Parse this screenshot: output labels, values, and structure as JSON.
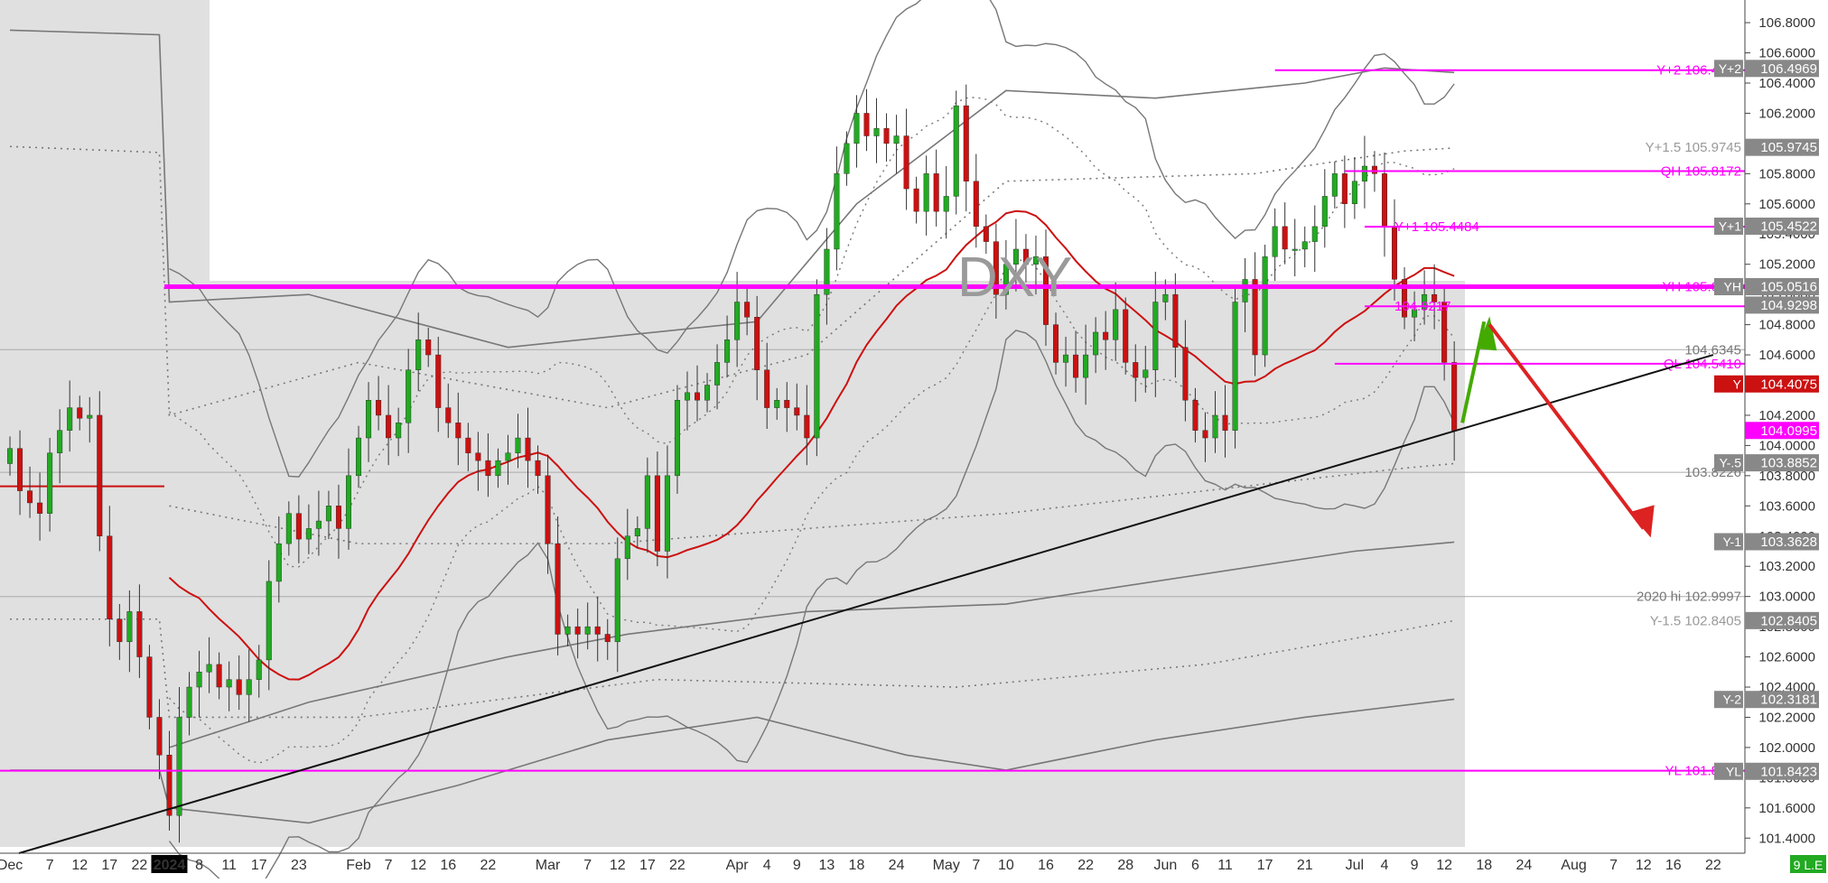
{
  "chart_data": {
    "type": "candlestick",
    "title": "DXY",
    "ylim": [
      101.3,
      106.95
    ],
    "y_ticks": [
      "106.8000",
      "106.6000",
      "106.4000",
      "106.2000",
      "106.0000",
      "105.8000",
      "105.6000",
      "105.4000",
      "105.2000",
      "105.0000",
      "104.8000",
      "104.6000",
      "104.4000",
      "104.2000",
      "104.0000",
      "103.8000",
      "103.6000",
      "103.4000",
      "103.2000",
      "103.0000",
      "102.8000",
      "102.6000",
      "102.4000",
      "102.2000",
      "102.0000",
      "101.8000",
      "101.6000",
      "101.4000"
    ],
    "x_ticks": [
      {
        "label": "Dec",
        "i": 0
      },
      {
        "label": "7",
        "i": 4
      },
      {
        "label": "12",
        "i": 7
      },
      {
        "label": "17",
        "i": 10
      },
      {
        "label": "22",
        "i": 13
      },
      {
        "label": "2024",
        "i": 16,
        "bold": true
      },
      {
        "label": "8",
        "i": 19
      },
      {
        "label": "11",
        "i": 22
      },
      {
        "label": "17",
        "i": 25
      },
      {
        "label": "23",
        "i": 29
      },
      {
        "label": "Feb",
        "i": 35
      },
      {
        "label": "7",
        "i": 38
      },
      {
        "label": "12",
        "i": 41
      },
      {
        "label": "16",
        "i": 44
      },
      {
        "label": "22",
        "i": 48
      },
      {
        "label": "Mar",
        "i": 54
      },
      {
        "label": "7",
        "i": 58
      },
      {
        "label": "12",
        "i": 61
      },
      {
        "label": "17",
        "i": 64
      },
      {
        "label": "22",
        "i": 67
      },
      {
        "label": "Apr",
        "i": 73
      },
      {
        "label": "4",
        "i": 76
      },
      {
        "label": "9",
        "i": 79
      },
      {
        "label": "13",
        "i": 82
      },
      {
        "label": "18",
        "i": 85
      },
      {
        "label": "24",
        "i": 89
      },
      {
        "label": "May",
        "i": 94
      },
      {
        "label": "7",
        "i": 97
      },
      {
        "label": "10",
        "i": 100
      },
      {
        "label": "16",
        "i": 104
      },
      {
        "label": "22",
        "i": 108
      },
      {
        "label": "28",
        "i": 112
      },
      {
        "label": "Jun",
        "i": 116
      },
      {
        "label": "6",
        "i": 119
      },
      {
        "label": "11",
        "i": 122
      },
      {
        "label": "17",
        "i": 126
      },
      {
        "label": "21",
        "i": 130
      },
      {
        "label": "Jul",
        "i": 135
      },
      {
        "label": "4",
        "i": 138
      },
      {
        "label": "9",
        "i": 141
      },
      {
        "label": "12",
        "i": 144
      },
      {
        "label": "18",
        "i": 148
      },
      {
        "label": "24",
        "i": 152
      },
      {
        "label": "Aug",
        "i": 157
      },
      {
        "label": "7",
        "i": 161
      },
      {
        "label": "12",
        "i": 164
      },
      {
        "label": "16",
        "i": 167
      },
      {
        "label": "22",
        "i": 171
      }
    ],
    "x_range": [
      -1,
      174
    ],
    "up_color": "#22aa22",
    "down_color": "#cc1111",
    "ma_color": "#cc1111",
    "level_color": "#ff00ff",
    "shade_color": "#e0e0e0",
    "series_close": [
      103.98,
      103.7,
      103.62,
      103.55,
      103.95,
      104.1,
      104.25,
      104.18,
      104.2,
      103.4,
      102.85,
      102.7,
      102.9,
      102.6,
      102.2,
      101.95,
      101.55,
      102.2,
      102.4,
      102.5,
      102.55,
      102.4,
      102.45,
      102.35,
      102.45,
      102.58,
      103.1,
      103.35,
      103.55,
      103.38,
      103.45,
      103.5,
      103.6,
      103.45,
      103.8,
      104.05,
      104.3,
      104.2,
      104.05,
      104.15,
      104.5,
      104.7,
      104.6,
      104.25,
      104.15,
      104.05,
      103.95,
      103.9,
      103.8,
      103.9,
      103.95,
      104.05,
      103.9,
      103.8,
      103.35,
      102.75,
      102.8,
      102.75,
      102.8,
      102.75,
      102.7,
      103.25,
      103.4,
      103.45,
      103.8,
      103.3,
      103.8,
      104.3,
      104.35,
      104.3,
      104.4,
      104.55,
      104.7,
      104.95,
      104.85,
      104.5,
      104.25,
      104.3,
      104.25,
      104.2,
      104.05,
      105.0,
      105.3,
      105.8,
      106.0,
      106.2,
      106.05,
      106.1,
      106.0,
      106.05,
      105.7,
      105.55,
      105.8,
      105.55,
      105.65,
      106.25,
      105.75,
      105.45,
      105.35,
      105.0,
      105.2,
      105.3,
      105.2,
      105.25,
      104.8,
      104.55,
      104.6,
      104.45,
      104.6,
      104.75,
      104.7,
      104.9,
      104.55,
      104.45,
      104.5,
      104.95,
      105.0,
      104.65,
      104.3,
      104.1,
      104.05,
      104.2,
      104.1,
      104.95,
      105.1,
      104.6,
      105.25,
      105.45,
      105.3,
      105.3,
      105.35,
      105.45,
      105.65,
      105.8,
      105.6,
      105.75,
      105.85,
      105.8,
      105.45,
      105.1,
      104.85,
      104.9,
      105.0,
      104.95,
      104.55,
      104.1
    ],
    "indicator_lines": [
      {
        "label": "YH",
        "value": "105.0516",
        "y": 105.0516
      },
      {
        "label": "YH",
        "value": "105.0516",
        "y": 105.0516
      },
      {
        "label": "QH",
        "value": "105.8172",
        "y": 105.8172
      },
      {
        "label": "Y+2",
        "value": "106.4855",
        "y": 106.4855
      },
      {
        "label": "Y+1",
        "value": "105.4484",
        "y": 105.4484
      },
      {
        "label": "QL",
        "value": "104.5410",
        "y": 104.541
      },
      {
        "label": "YL",
        "value": "101.8465",
        "y": 101.8465
      }
    ],
    "price_labels": [
      {
        "text": "106.4855",
        "prefix": "Y+2",
        "y": 106.4855,
        "color": "#ff00ff",
        "style": "text"
      },
      {
        "text": "105.8172",
        "prefix": "QH",
        "y": 105.8172,
        "color": "#ff00ff",
        "style": "text"
      },
      {
        "text": "105.4484",
        "prefix": "Y+1",
        "y": 105.4484,
        "color": "#ff00ff",
        "style": "text-left"
      },
      {
        "text": "105.0516",
        "prefix": "YH",
        "y": 105.0516,
        "color": "#ff00ff",
        "style": "text-small"
      },
      {
        "text": "104.9217",
        "prefix": "",
        "y": 104.9217,
        "color": "#ff00ff",
        "style": "text-left"
      },
      {
        "text": "104.5410",
        "prefix": "QL",
        "y": 104.541,
        "color": "#ff00ff",
        "style": "text"
      },
      {
        "text": "101.8465",
        "prefix": "YL",
        "y": 101.8465,
        "color": "#ff00ff",
        "style": "text"
      },
      {
        "text": "104.6345",
        "prefix": "",
        "y": 104.6345,
        "color": "#777777",
        "style": "text"
      },
      {
        "text": "103.8226",
        "prefix": "",
        "y": 103.8226,
        "color": "#777777",
        "style": "text"
      },
      {
        "text": "102.9997",
        "prefix": "2020 hi",
        "y": 102.9997,
        "color": "#777777",
        "style": "text"
      },
      {
        "text": "105.9745",
        "prefix": "Y+1.5",
        "y": 105.9745,
        "color": "#999999",
        "style": "badge-grey"
      },
      {
        "text": "102.8405",
        "prefix": "Y-1.5",
        "y": 102.8405,
        "color": "#999999",
        "style": "badge-grey"
      }
    ],
    "badges": [
      {
        "text": "106.4969",
        "prefix": "Y+2",
        "y": 106.4969,
        "bg": "#888888",
        "fg": "#ffffff"
      },
      {
        "text": "105.9745",
        "prefix": "",
        "y": 105.9745,
        "bg": "#888888",
        "fg": "#ffffff"
      },
      {
        "text": "105.4522",
        "prefix": "Y+1",
        "y": 105.4522,
        "bg": "#888888",
        "fg": "#ffffff"
      },
      {
        "text": "105.0516",
        "prefix": "YH",
        "y": 105.0516,
        "bg": "#888888",
        "fg": "#ffffff"
      },
      {
        "text": "104.9298",
        "prefix": "",
        "y": 104.9298,
        "bg": "#888888",
        "fg": "#ffffff"
      },
      {
        "text": "104.4075",
        "prefix": "Y",
        "y": 104.4075,
        "bg": "#cc1111",
        "fg": "#ffffff"
      },
      {
        "text": "104.0995",
        "prefix": "",
        "y": 104.0995,
        "bg": "#ff00ff",
        "fg": "#ffffff"
      },
      {
        "text": "103.8852",
        "prefix": "Y-.5",
        "y": 103.8852,
        "bg": "#888888",
        "fg": "#ffffff"
      },
      {
        "text": "103.3628",
        "prefix": "Y-1",
        "y": 103.3628,
        "bg": "#888888",
        "fg": "#ffffff"
      },
      {
        "text": "102.8405",
        "prefix": "",
        "y": 102.8405,
        "bg": "#888888",
        "fg": "#ffffff"
      },
      {
        "text": "102.3181",
        "prefix": "Y-2",
        "y": 102.3181,
        "bg": "#888888",
        "fg": "#ffffff"
      },
      {
        "text": "101.8423",
        "prefix": "YL",
        "y": 101.8423,
        "bg": "#888888",
        "fg": "#ffffff"
      }
    ],
    "corner_label": "9 L.E"
  }
}
